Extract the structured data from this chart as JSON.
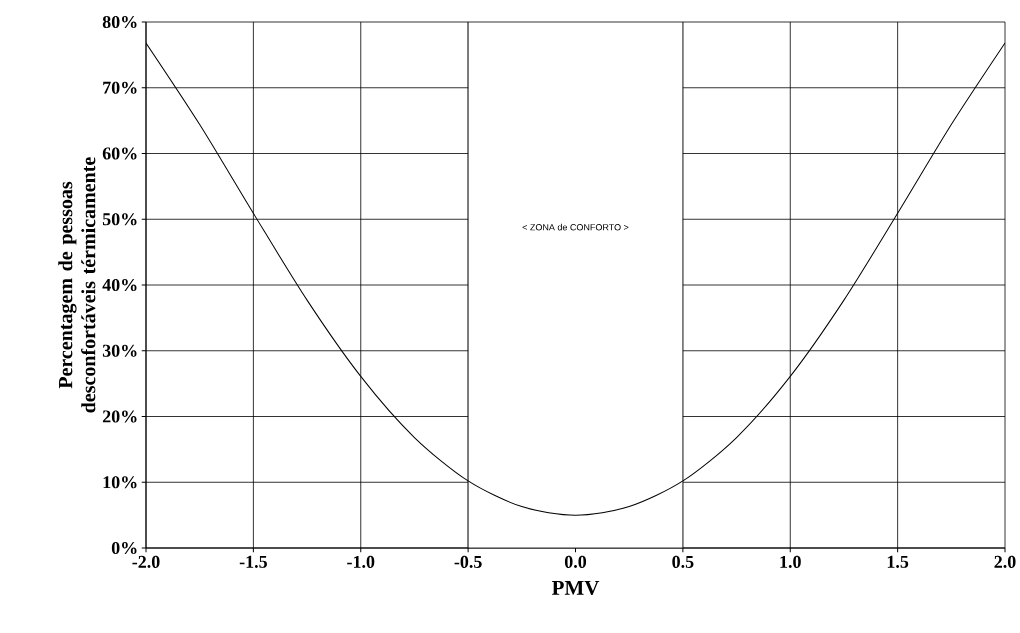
{
  "chart_data": {
    "type": "line",
    "xlabel": "PMV",
    "ylabel": "Percentagem de pessoas desconfortáveis térmicamente",
    "x": [
      -2.0,
      -1.75,
      -1.5,
      -1.25,
      -1.0,
      -0.75,
      -0.5,
      -0.25,
      0.0,
      0.25,
      0.5,
      0.75,
      1.0,
      1.25,
      1.5,
      1.75,
      2.0
    ],
    "series": [
      {
        "color": "#000000",
        "values": [
          76.8,
          64.4,
          50.9,
          37.7,
          26.1,
          16.8,
          10.2,
          6.3,
          5.0,
          6.3,
          10.2,
          16.8,
          26.1,
          37.7,
          50.9,
          64.4,
          76.8
        ]
      }
    ],
    "xlim": [
      -2,
      2
    ],
    "ylim": [
      0,
      80
    ],
    "xticks": [
      {
        "value": -2,
        "label": "-2.0"
      },
      {
        "value": -1.5,
        "label": "-1.5"
      },
      {
        "value": -1,
        "label": "-1.0"
      },
      {
        "value": -0.5,
        "label": "-0.5"
      },
      {
        "value": 0,
        "label": "0.0"
      },
      {
        "value": 0.5,
        "label": "0.5"
      },
      {
        "value": 1,
        "label": "1.0"
      },
      {
        "value": 1.5,
        "label": "1.5"
      },
      {
        "value": 2,
        "label": "2.0"
      }
    ],
    "yticks": [
      {
        "value": 0,
        "label": "0%"
      },
      {
        "value": 10,
        "label": "10%"
      },
      {
        "value": 20,
        "label": "20%"
      },
      {
        "value": 30,
        "label": "30%"
      },
      {
        "value": 40,
        "label": "40%"
      },
      {
        "value": 50,
        "label": "50%"
      },
      {
        "value": 60,
        "label": "60%"
      },
      {
        "value": 70,
        "label": "70%"
      },
      {
        "value": 80,
        "label": "80%"
      }
    ],
    "bands": [
      {
        "axis": "x",
        "from": -0.5,
        "to": 0.5,
        "label": "<    ZONA de CONFORTO    >",
        "color": "#ffffff"
      }
    ],
    "grid": true,
    "marker": "none",
    "line_style": "solid"
  }
}
